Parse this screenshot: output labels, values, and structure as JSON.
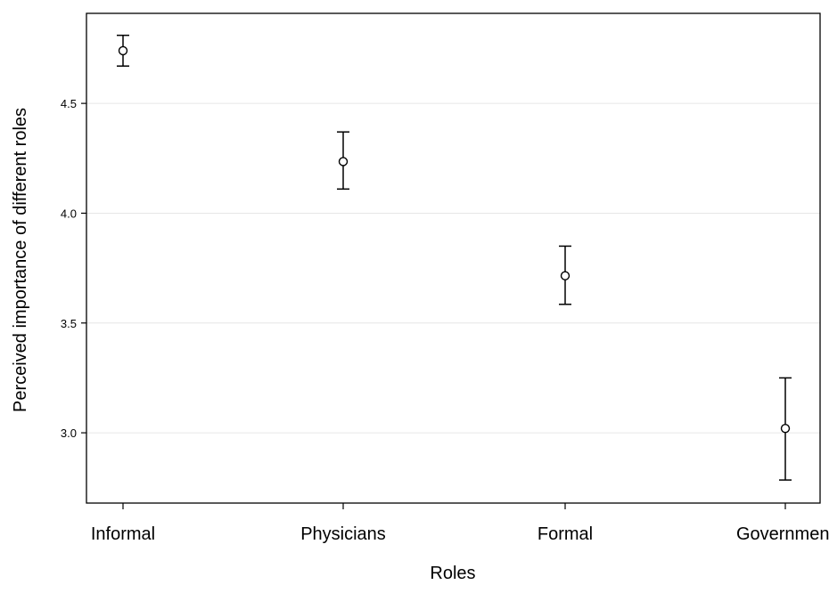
{
  "chart_data": {
    "type": "scatter",
    "subtype": "point-with-error-bars",
    "title": "",
    "xlabel": "Roles",
    "ylabel": "Perceived importance of different roles",
    "categories": [
      "Informal",
      "Physicians",
      "Formal",
      "Government"
    ],
    "series": [
      {
        "values": [
          4.74,
          4.235,
          3.715,
          3.02
        ],
        "lower": [
          4.67,
          4.11,
          3.585,
          2.785
        ],
        "upper": [
          4.81,
          4.37,
          3.85,
          3.25
        ]
      }
    ],
    "yticks": [
      3.0,
      3.5,
      4.0,
      4.5
    ],
    "ytick_labels": [
      "3.0",
      "3.5",
      "4.0",
      "4.5"
    ],
    "ylim": [
      2.68,
      4.91
    ],
    "grid": "horizontal",
    "legend": "none",
    "colors": {
      "marker": "#000000",
      "grid": "#e6e6e6",
      "frame": "#000000"
    }
  }
}
